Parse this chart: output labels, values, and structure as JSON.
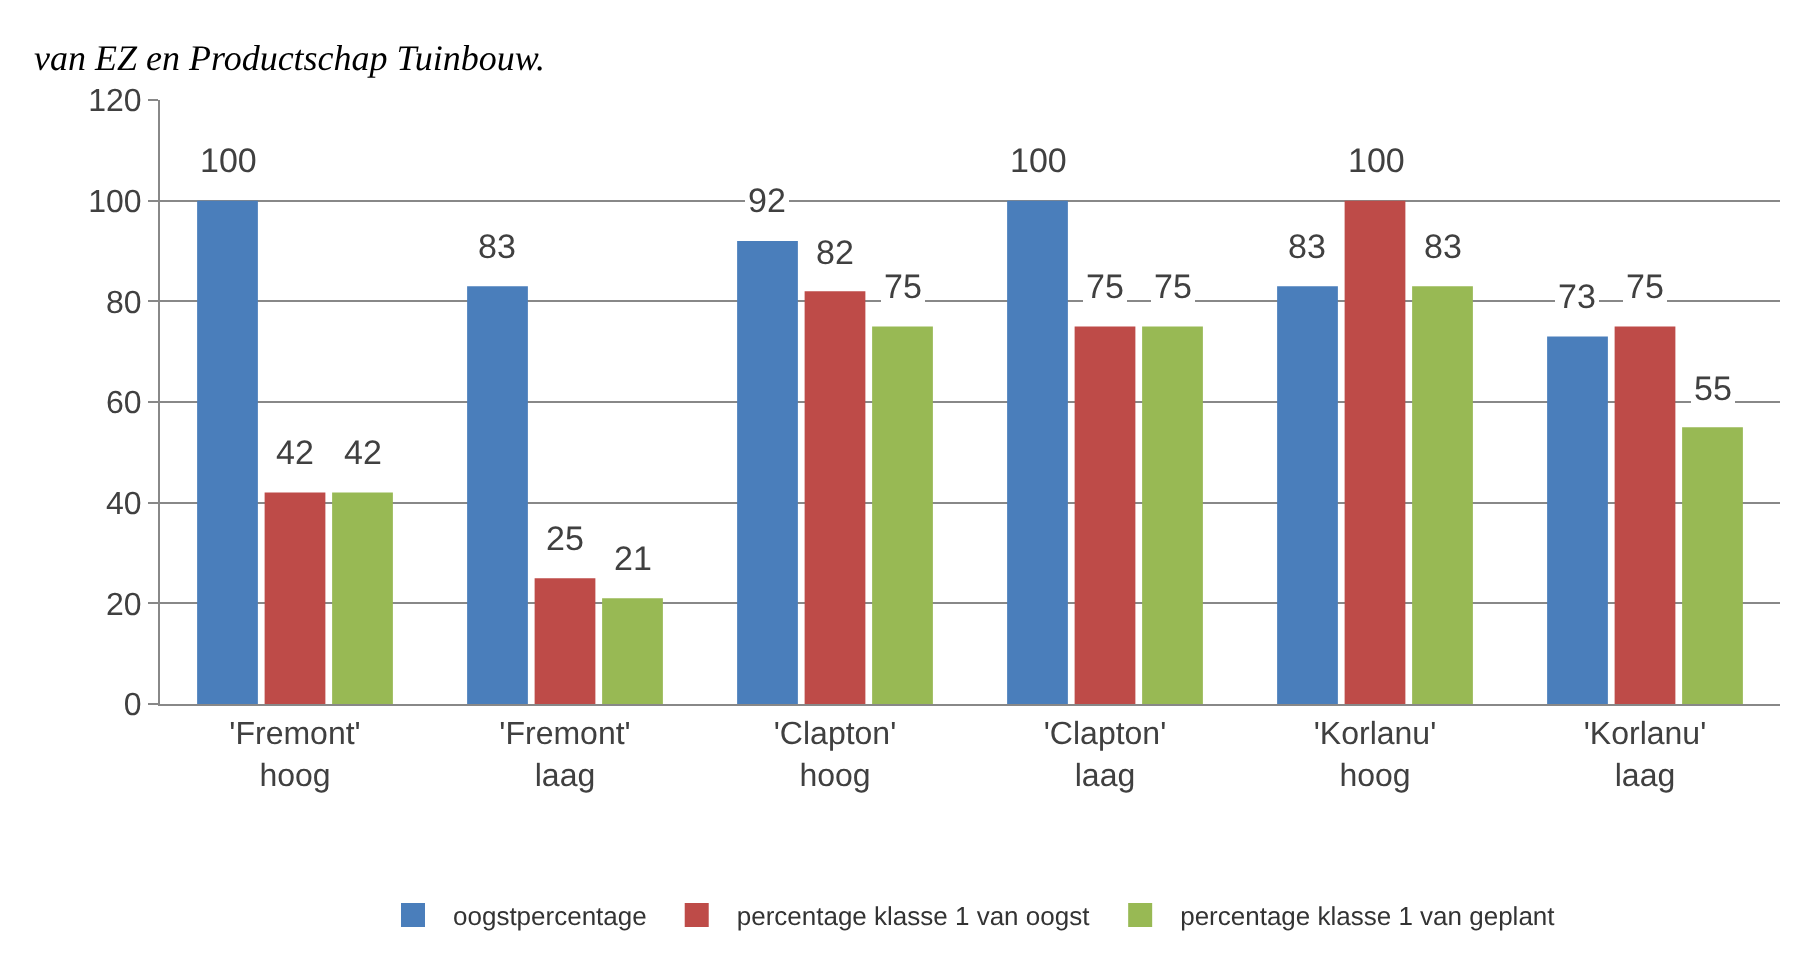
{
  "chart_data": {
    "type": "bar",
    "annotations": [
      "van EZ en Productschap Tuinbouw."
    ],
    "categories": [
      "'Fremont' hoog",
      "'Fremont' laag",
      "'Clapton' hoog",
      "'Clapton' laag",
      "'Korlanu' hoog",
      "'Korlanu' laag"
    ],
    "series": [
      {
        "name": "oogstpercentage",
        "color": "#4a7ebb",
        "values": [
          100,
          83,
          92,
          100,
          83,
          73
        ]
      },
      {
        "name": "percentage klasse 1 van oogst",
        "color": "#be4b48",
        "values": [
          42,
          25,
          82,
          75,
          100,
          75
        ]
      },
      {
        "name": "percentage klasse 1 van geplant",
        "color": "#98b954",
        "values": [
          42,
          21,
          75,
          75,
          83,
          55
        ]
      }
    ],
    "ylim": [
      0,
      120
    ],
    "yticks": [
      0,
      20,
      40,
      60,
      80,
      100,
      120
    ],
    "grid": "y",
    "legend": "bottom",
    "data_labels": true
  }
}
